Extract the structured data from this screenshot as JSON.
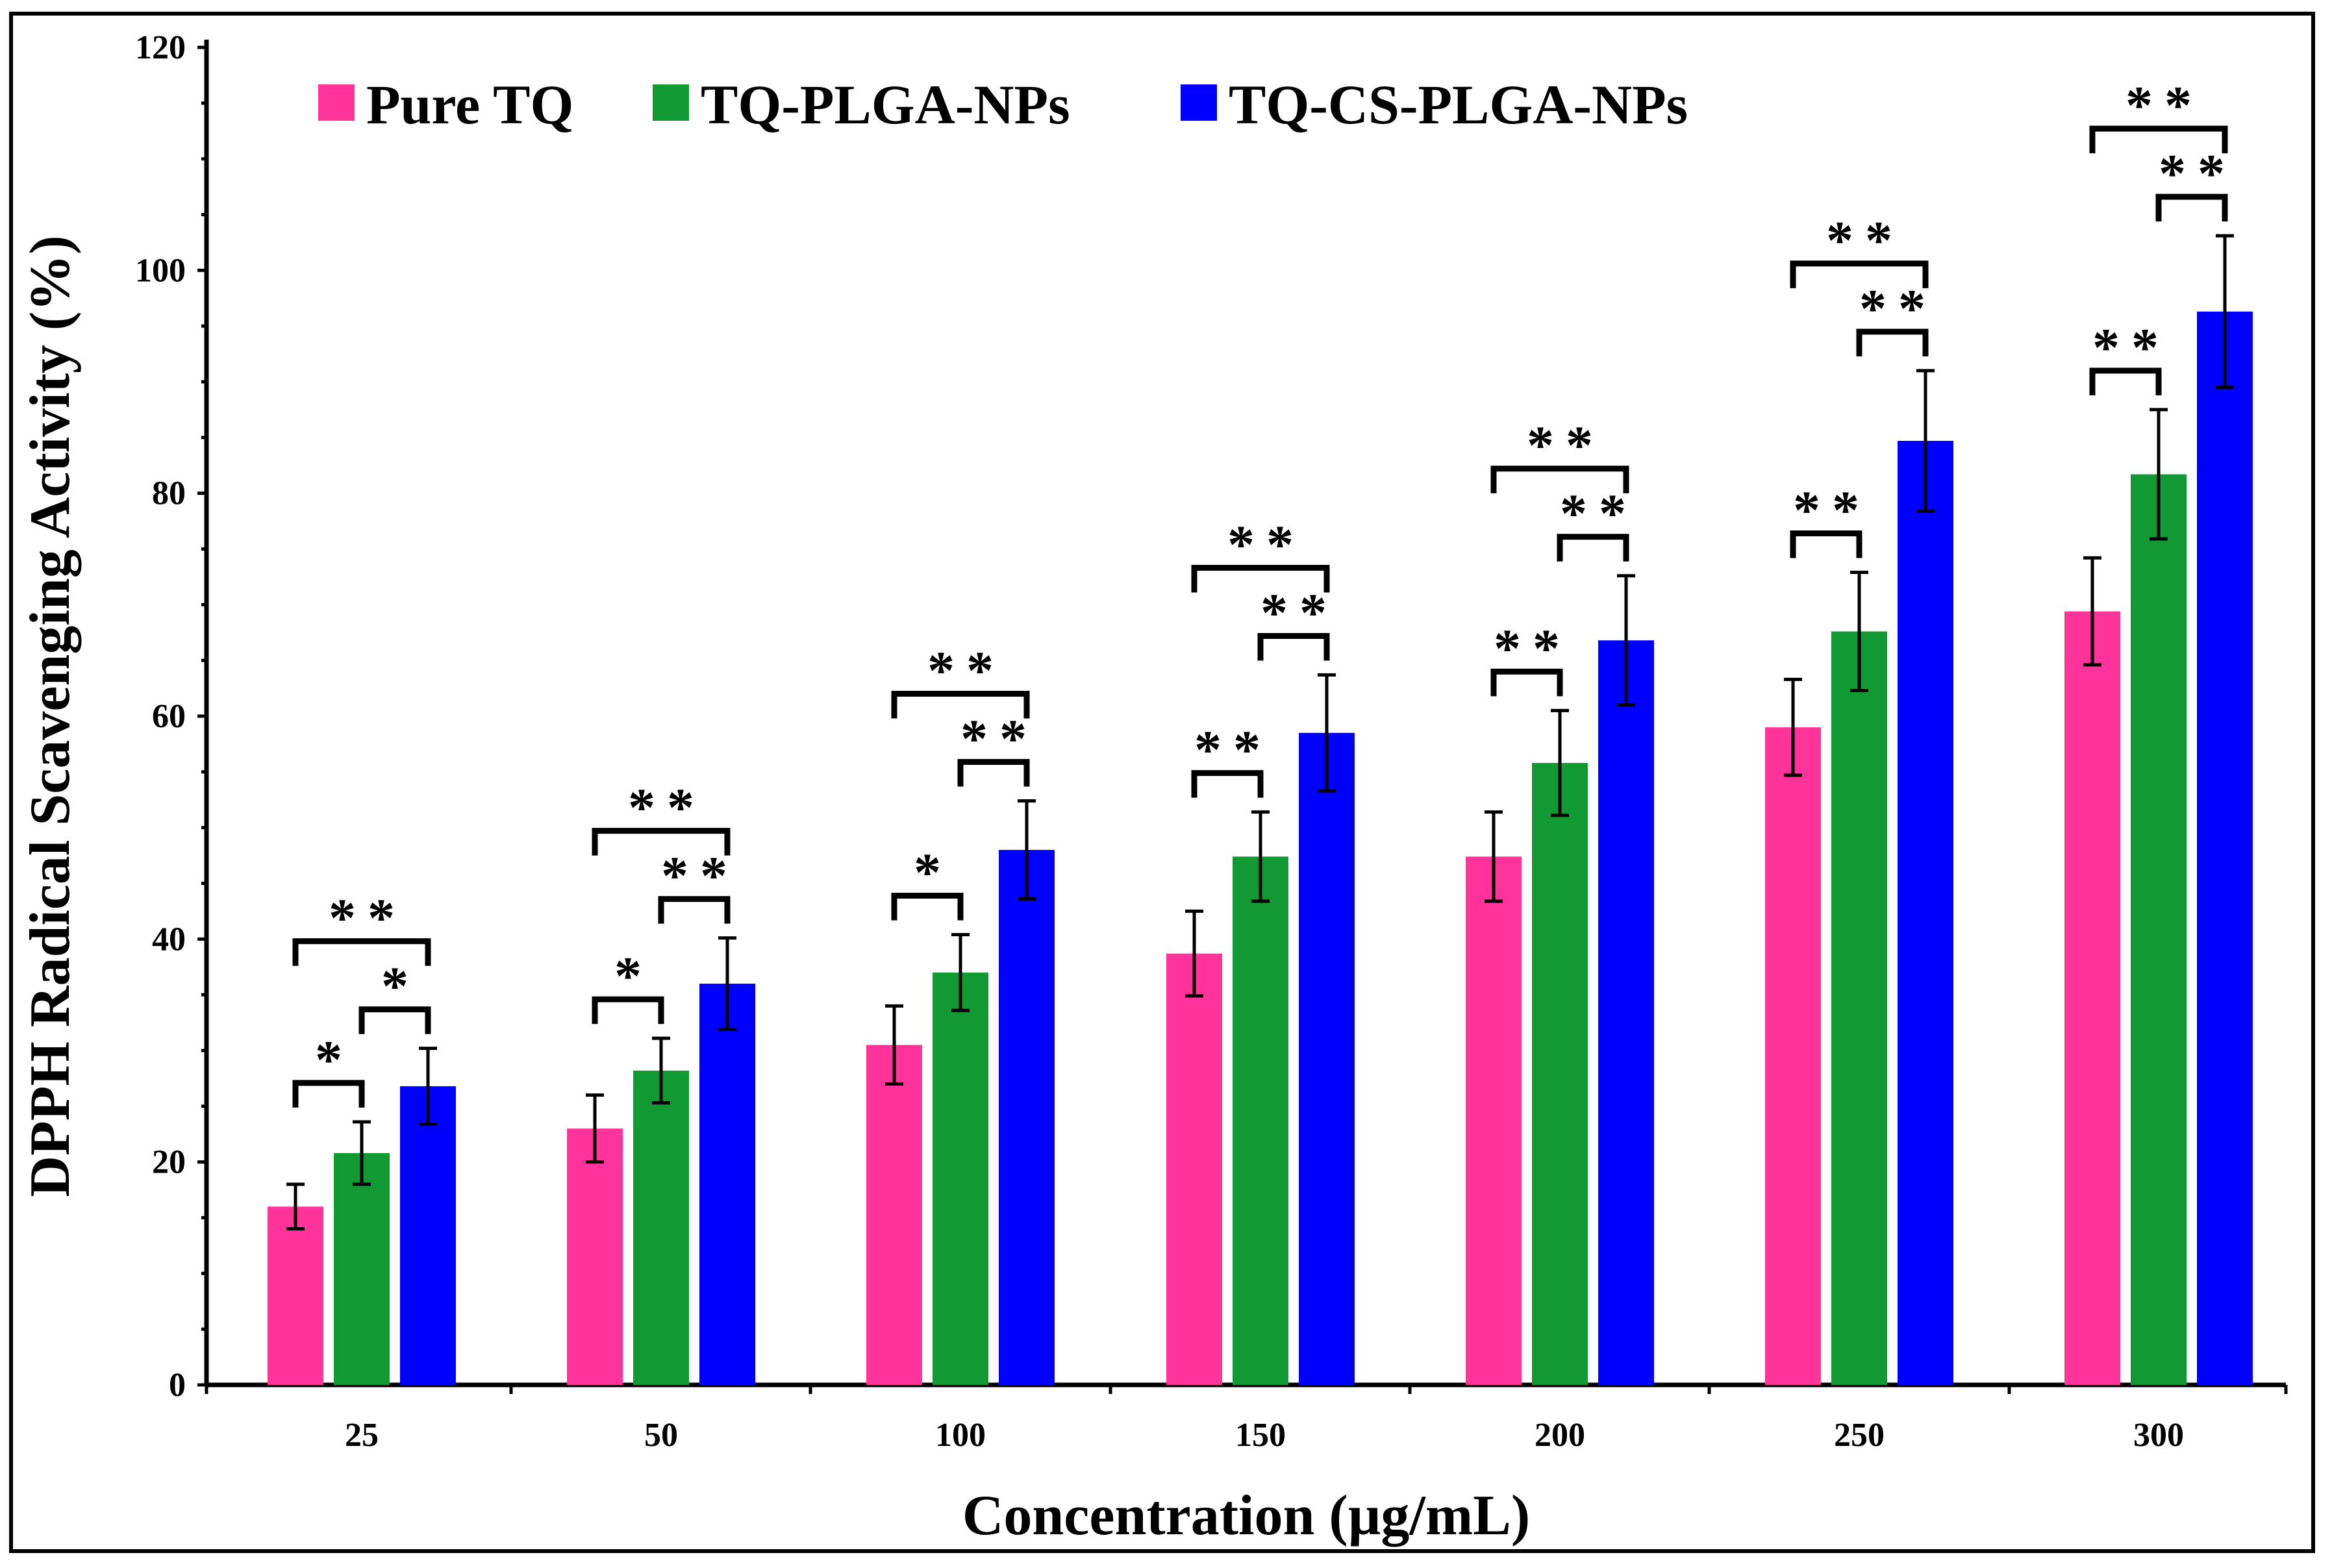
{
  "chart_data": {
    "type": "bar",
    "title": "",
    "xlabel": "Concentration  (µg/mL)",
    "ylabel": "DPPH Radical  Scavenging Activity  (%)",
    "ylim": [
      0,
      120
    ],
    "yticks": [
      "0",
      "20",
      "40",
      "60",
      "80",
      "100",
      "120"
    ],
    "categories": [
      "25",
      "50",
      "100",
      "150",
      "200",
      "250",
      "300"
    ],
    "legend_position": "top-left",
    "series": [
      {
        "name": "Pure TQ",
        "color": "#ff3399",
        "values": [
          16.0,
          23.0,
          30.5,
          38.7,
          47.4,
          59.0,
          69.4
        ],
        "errors": [
          2.0,
          3.0,
          3.5,
          3.8,
          4.0,
          4.3,
          4.8
        ]
      },
      {
        "name": "TQ-PLGA-NPs",
        "color": "#119a33",
        "values": [
          20.8,
          28.2,
          37.0,
          47.4,
          55.8,
          67.6,
          81.7
        ],
        "errors": [
          2.8,
          2.9,
          3.4,
          4.0,
          4.7,
          5.3,
          5.8
        ]
      },
      {
        "name": "TQ-CS-PLGA-NPs",
        "color": "#0000ff",
        "values": [
          26.8,
          36.0,
          48.0,
          58.5,
          66.8,
          84.7,
          96.3
        ],
        "errors": [
          3.4,
          4.1,
          4.4,
          5.2,
          5.8,
          6.3,
          6.8
        ]
      }
    ],
    "significance": [
      {
        "group": 0,
        "pair": "pure-vs-plga",
        "label": "*"
      },
      {
        "group": 0,
        "pair": "plga-vs-cs",
        "label": "*"
      },
      {
        "group": 0,
        "pair": "pure-vs-cs",
        "label": "**"
      },
      {
        "group": 1,
        "pair": "pure-vs-plga",
        "label": "*"
      },
      {
        "group": 1,
        "pair": "plga-vs-cs",
        "label": "**"
      },
      {
        "group": 1,
        "pair": "pure-vs-cs",
        "label": "**"
      },
      {
        "group": 2,
        "pair": "pure-vs-plga",
        "label": "*"
      },
      {
        "group": 2,
        "pair": "plga-vs-cs",
        "label": "**"
      },
      {
        "group": 2,
        "pair": "pure-vs-cs",
        "label": "**"
      },
      {
        "group": 3,
        "pair": "pure-vs-plga",
        "label": "**"
      },
      {
        "group": 3,
        "pair": "plga-vs-cs",
        "label": "**"
      },
      {
        "group": 3,
        "pair": "pure-vs-cs",
        "label": "**"
      },
      {
        "group": 4,
        "pair": "pure-vs-plga",
        "label": "**"
      },
      {
        "group": 4,
        "pair": "plga-vs-cs",
        "label": "**"
      },
      {
        "group": 4,
        "pair": "pure-vs-cs",
        "label": "**"
      },
      {
        "group": 5,
        "pair": "pure-vs-plga",
        "label": "**"
      },
      {
        "group": 5,
        "pair": "plga-vs-cs",
        "label": "**"
      },
      {
        "group": 5,
        "pair": "pure-vs-cs",
        "label": "**"
      },
      {
        "group": 6,
        "pair": "pure-vs-plga",
        "label": "**"
      },
      {
        "group": 6,
        "pair": "plga-vs-cs",
        "label": "**"
      },
      {
        "group": 6,
        "pair": "pure-vs-cs",
        "label": "**"
      }
    ]
  }
}
